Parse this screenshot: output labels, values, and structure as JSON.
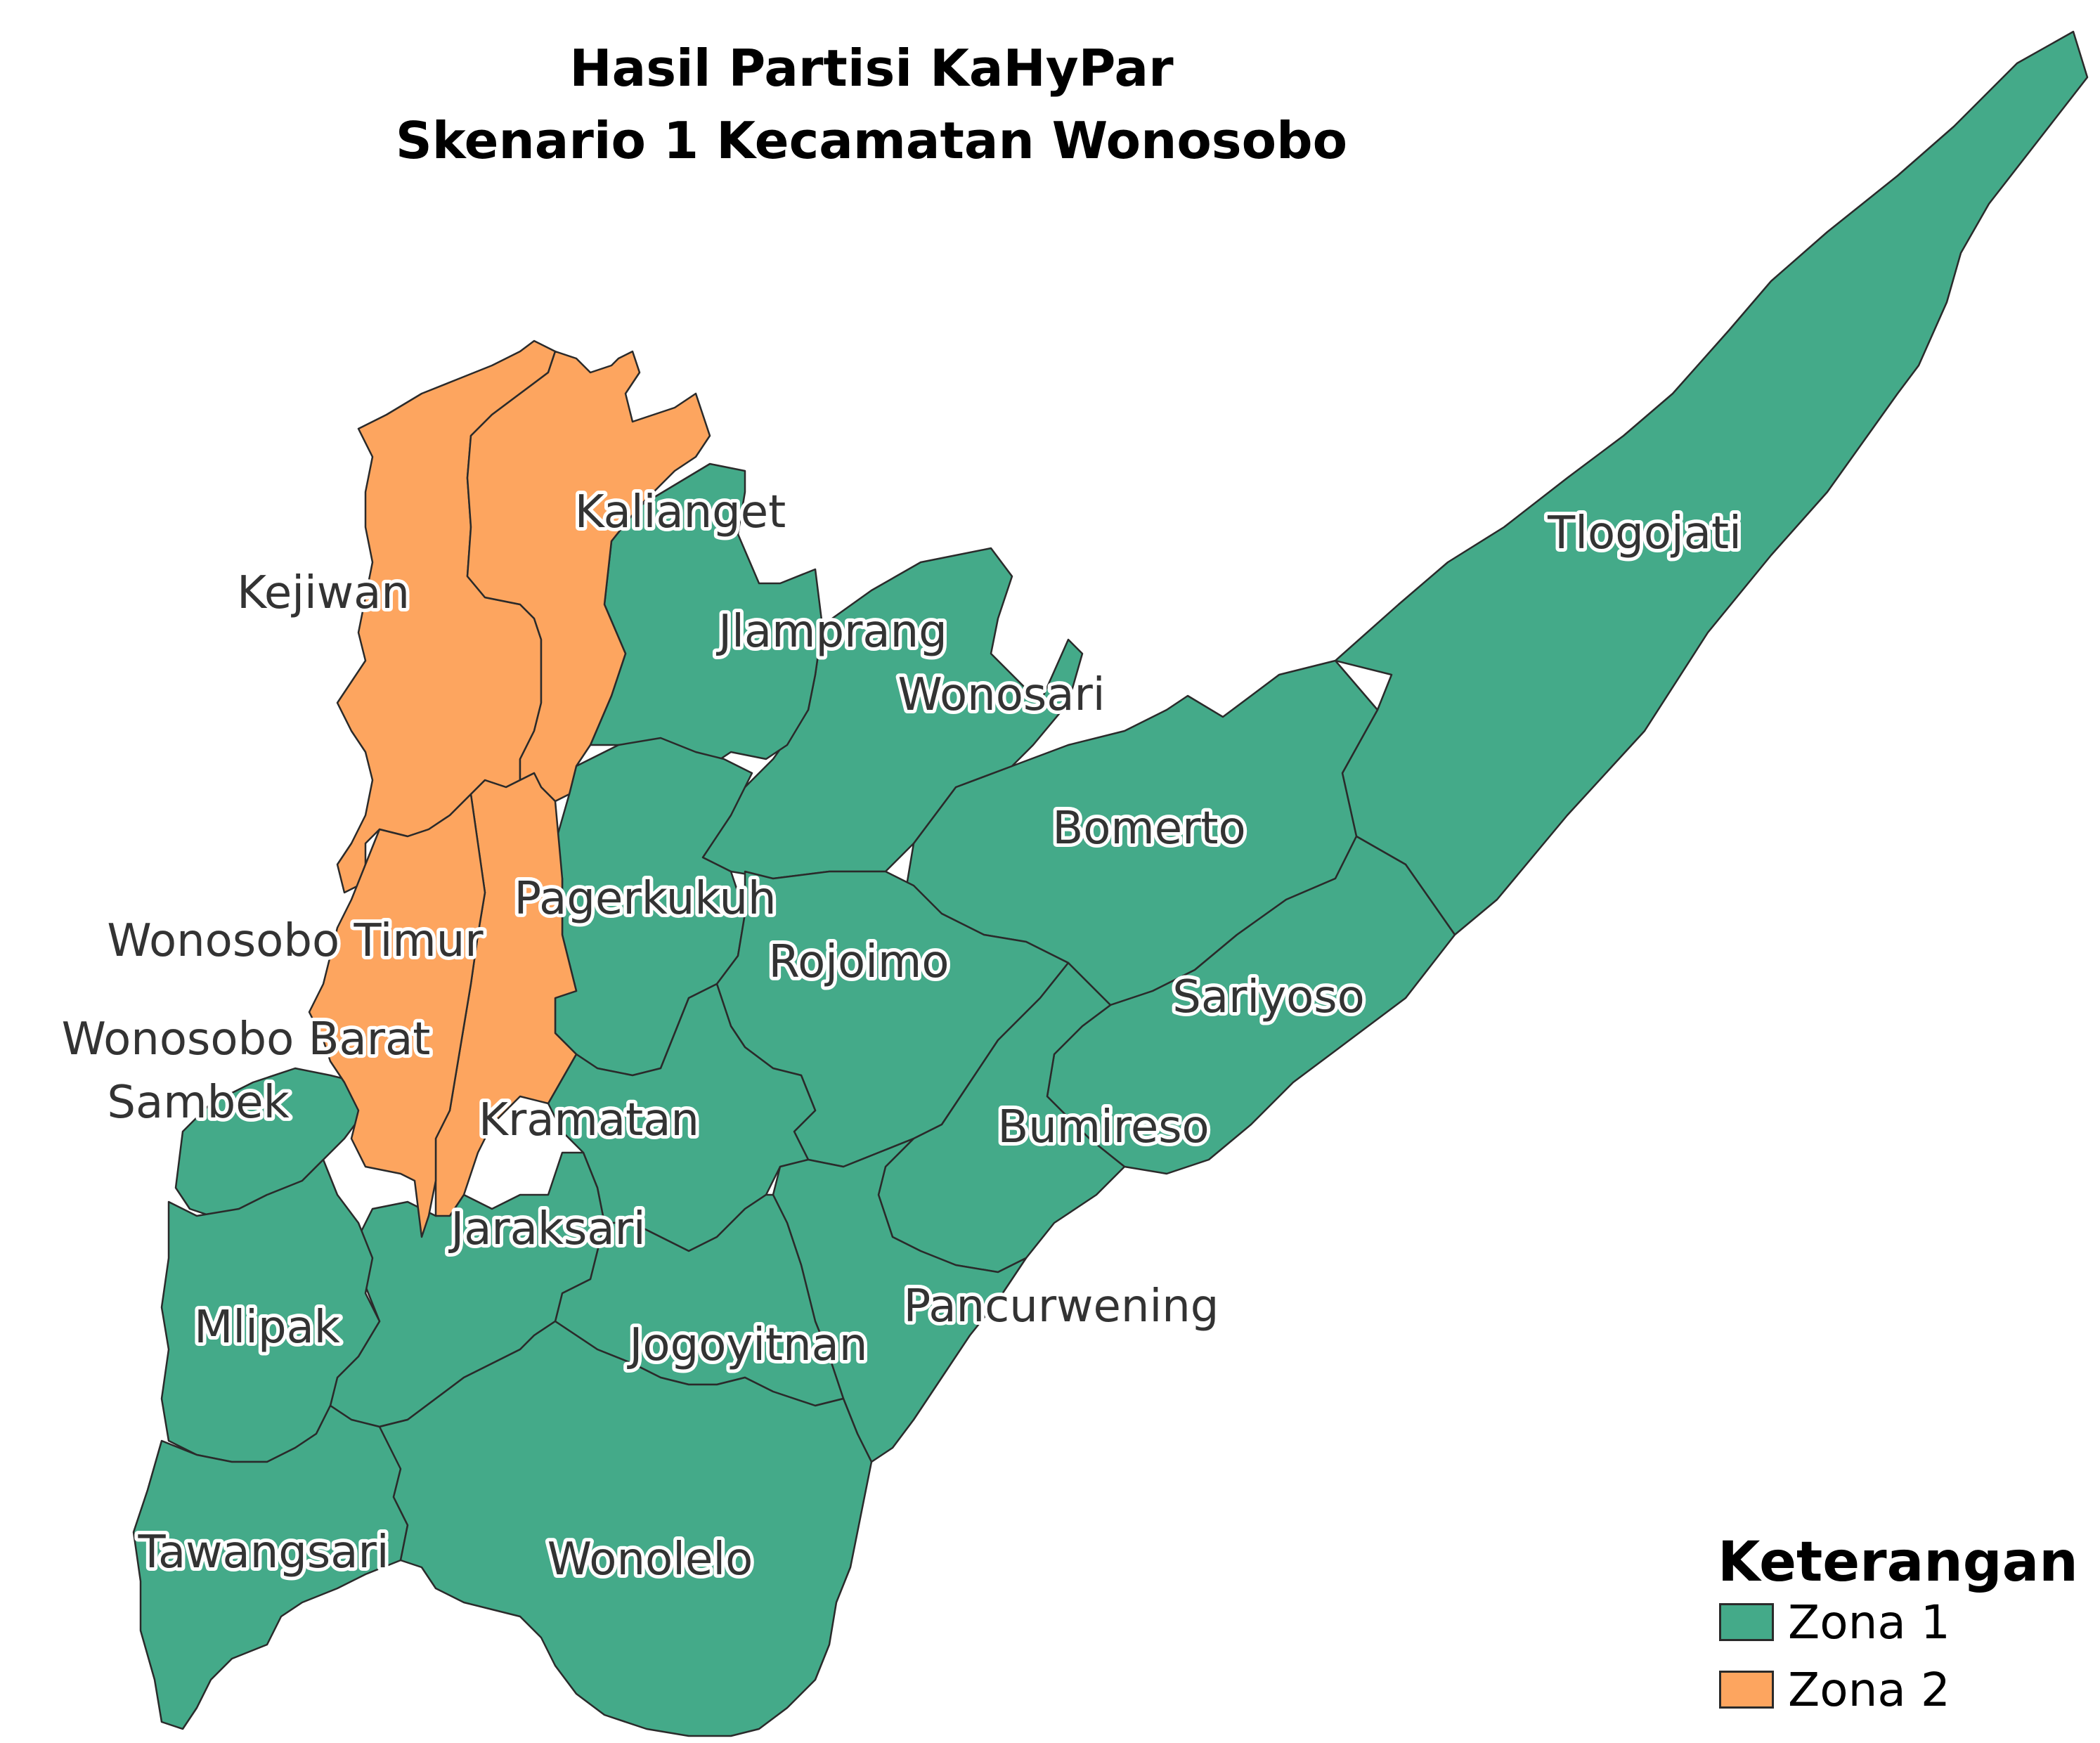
{
  "title": {
    "line1": "Hasil Partisi KaHyPar",
    "line2": "Skenario 1 Kecamatan Wonosobo"
  },
  "colors": {
    "zona1": "#44aa89",
    "zona2": "#fda55f"
  },
  "regions": [
    {
      "name": "Kejiwan",
      "zone": "Zona 2"
    },
    {
      "name": "Kalianget",
      "zone": "Zona 2"
    },
    {
      "name": "Wonosobo Timur",
      "zone": "Zona 2"
    },
    {
      "name": "Wonosobo Barat",
      "zone": "Zona 2"
    },
    {
      "name": "Pagerkukuh",
      "zone": "Zona 1"
    },
    {
      "name": "Jlamprang",
      "zone": "Zona 1"
    },
    {
      "name": "Wonosari",
      "zone": "Zona 1"
    },
    {
      "name": "Tlogojati",
      "zone": "Zona 1"
    },
    {
      "name": "Bomerto",
      "zone": "Zona 1"
    },
    {
      "name": "Rojoimo",
      "zone": "Zona 1"
    },
    {
      "name": "Sariyoso",
      "zone": "Zona 1"
    },
    {
      "name": "Kramatan",
      "zone": "Zona 1"
    },
    {
      "name": "Bumireso",
      "zone": "Zona 1"
    },
    {
      "name": "Sambek",
      "zone": "Zona 1"
    },
    {
      "name": "Jaraksari",
      "zone": "Zona 1"
    },
    {
      "name": "Mlipak",
      "zone": "Zona 1"
    },
    {
      "name": "Jogoyitnan",
      "zone": "Zona 1"
    },
    {
      "name": "Pancurwening",
      "zone": "Zona 1"
    },
    {
      "name": "Tawangsari",
      "zone": "Zona 1"
    },
    {
      "name": "Wonolelo",
      "zone": "Zona 1"
    }
  ],
  "legend": {
    "title": "Keterangan",
    "items": [
      {
        "label": "Zona 1",
        "color": "#44aa89"
      },
      {
        "label": "Zona 2",
        "color": "#fda55f"
      }
    ]
  }
}
